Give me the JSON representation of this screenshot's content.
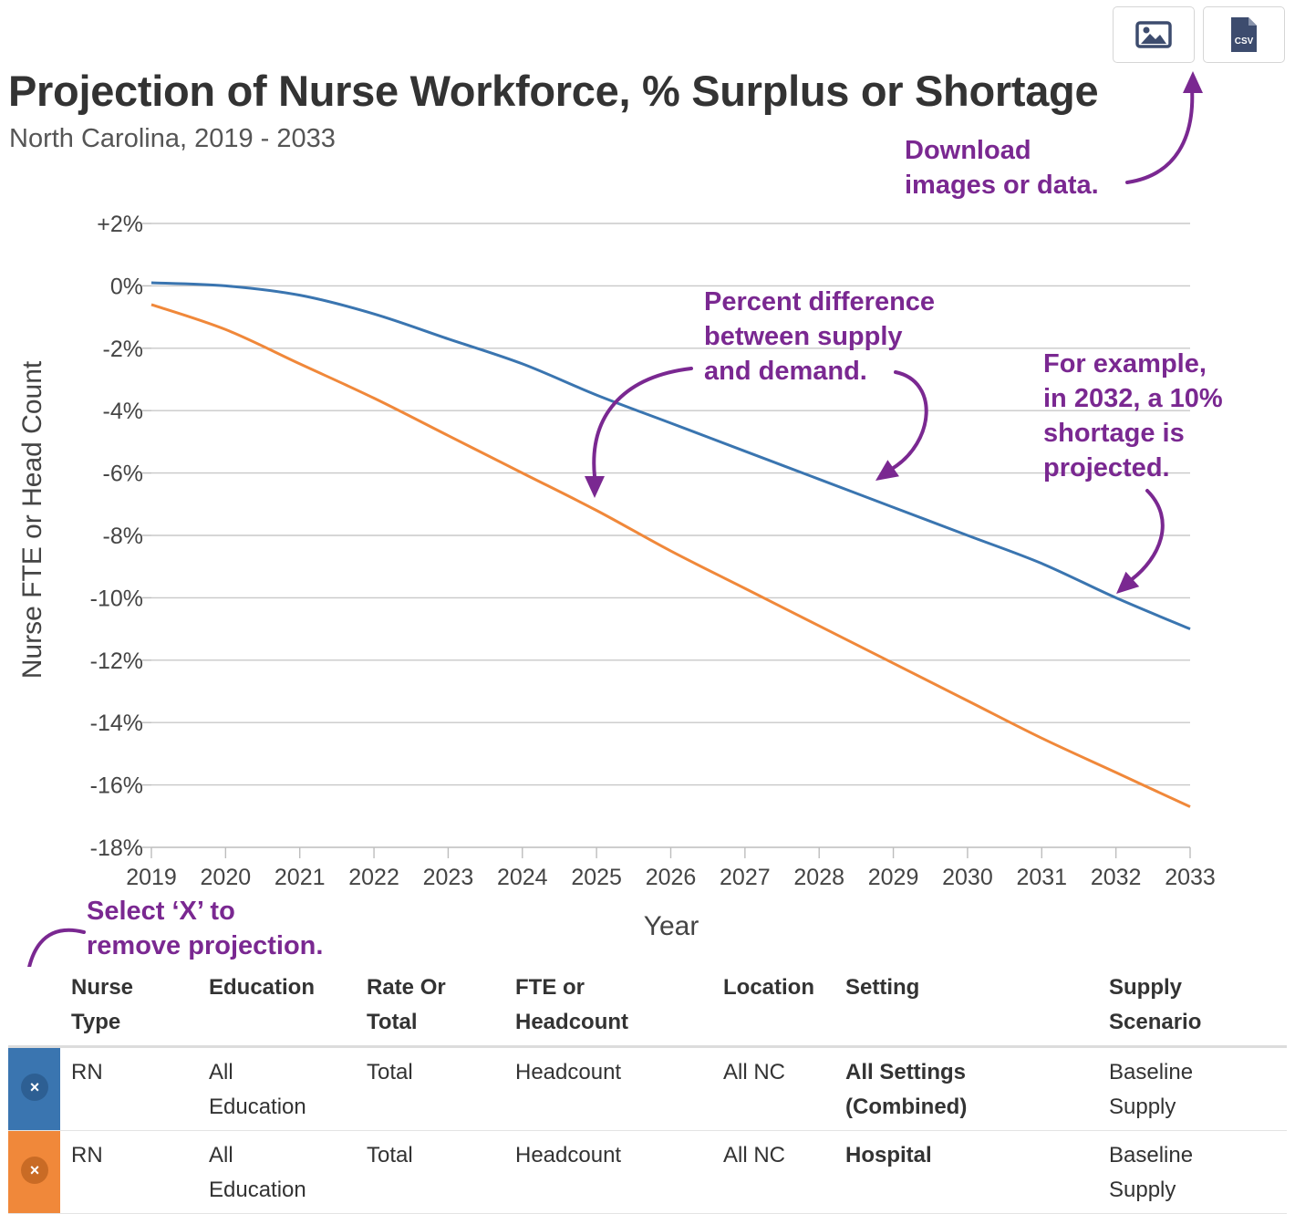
{
  "header": {
    "title": "Projection of Nurse Workforce, % Surplus or Shortage",
    "subtitle": "North Carolina, 2019 - 2033"
  },
  "toolbar": {
    "image_icon": "image-icon",
    "csv_icon": "csv-file-icon",
    "csv_label": "CSV"
  },
  "annotations": {
    "download": [
      "Download",
      "images or data."
    ],
    "percent": [
      "Percent difference",
      "between supply",
      "and demand."
    ],
    "example": [
      "For example,",
      "in 2032, a 10%",
      "shortage is",
      "projected."
    ],
    "remove": [
      "Select ‘X’ to",
      "remove projection."
    ],
    "color": "#7a2891"
  },
  "chart_data": {
    "type": "line",
    "xlabel": "Year",
    "ylabel": "Nurse FTE or Head Count",
    "x": [
      2019,
      2020,
      2021,
      2022,
      2023,
      2024,
      2025,
      2026,
      2027,
      2028,
      2029,
      2030,
      2031,
      2032,
      2033
    ],
    "x_tick_labels": [
      "2019",
      "2020",
      "2021",
      "2022",
      "2023",
      "2024",
      "2025",
      "2026",
      "2027",
      "2028",
      "2029",
      "2030",
      "2031",
      "2032",
      "2033"
    ],
    "ylim": [
      -18,
      2
    ],
    "y_ticks": [
      2,
      0,
      -2,
      -4,
      -6,
      -8,
      -10,
      -12,
      -14,
      -16,
      -18
    ],
    "y_tick_labels": [
      "+2%",
      "0%",
      "-2%",
      "-4%",
      "-6%",
      "-8%",
      "-10%",
      "-12%",
      "-14%",
      "-16%",
      "-18%"
    ],
    "grid": true,
    "series": [
      {
        "color": "#3a75b0",
        "values": [
          0.1,
          0.0,
          -0.3,
          -0.9,
          -1.7,
          -2.5,
          -3.5,
          -4.4,
          -5.3,
          -6.2,
          -7.1,
          -8.0,
          -8.9,
          -10.0,
          -11.0
        ]
      },
      {
        "color": "#f0883a",
        "values": [
          -0.6,
          -1.4,
          -2.5,
          -3.6,
          -4.8,
          -6.0,
          -7.2,
          -8.5,
          -9.7,
          -10.9,
          -12.1,
          -13.3,
          -14.5,
          -15.6,
          -16.7
        ]
      }
    ]
  },
  "table": {
    "headers": [
      [
        "Nurse",
        "Type"
      ],
      [
        "Education"
      ],
      [
        "Rate Or",
        "Total"
      ],
      [
        "FTE or",
        "Headcount"
      ],
      [
        "Location"
      ],
      [
        "Setting"
      ],
      [
        "Supply",
        "Scenario"
      ]
    ],
    "rows": [
      {
        "color": "#3a75b0",
        "remove_symbol": "×",
        "nurse_type": "RN",
        "education": [
          "All",
          "Education"
        ],
        "rate": "Total",
        "fte": "Headcount",
        "location": "All NC",
        "setting": [
          "All Settings",
          "(Combined)"
        ],
        "scenario": [
          "Baseline",
          "Supply"
        ]
      },
      {
        "color": "#f0883a",
        "remove_symbol": "×",
        "nurse_type": "RN",
        "education": [
          "All",
          "Education"
        ],
        "rate": "Total",
        "fte": "Headcount",
        "location": "All NC",
        "setting": [
          "Hospital"
        ],
        "scenario": [
          "Baseline",
          "Supply"
        ]
      }
    ]
  }
}
